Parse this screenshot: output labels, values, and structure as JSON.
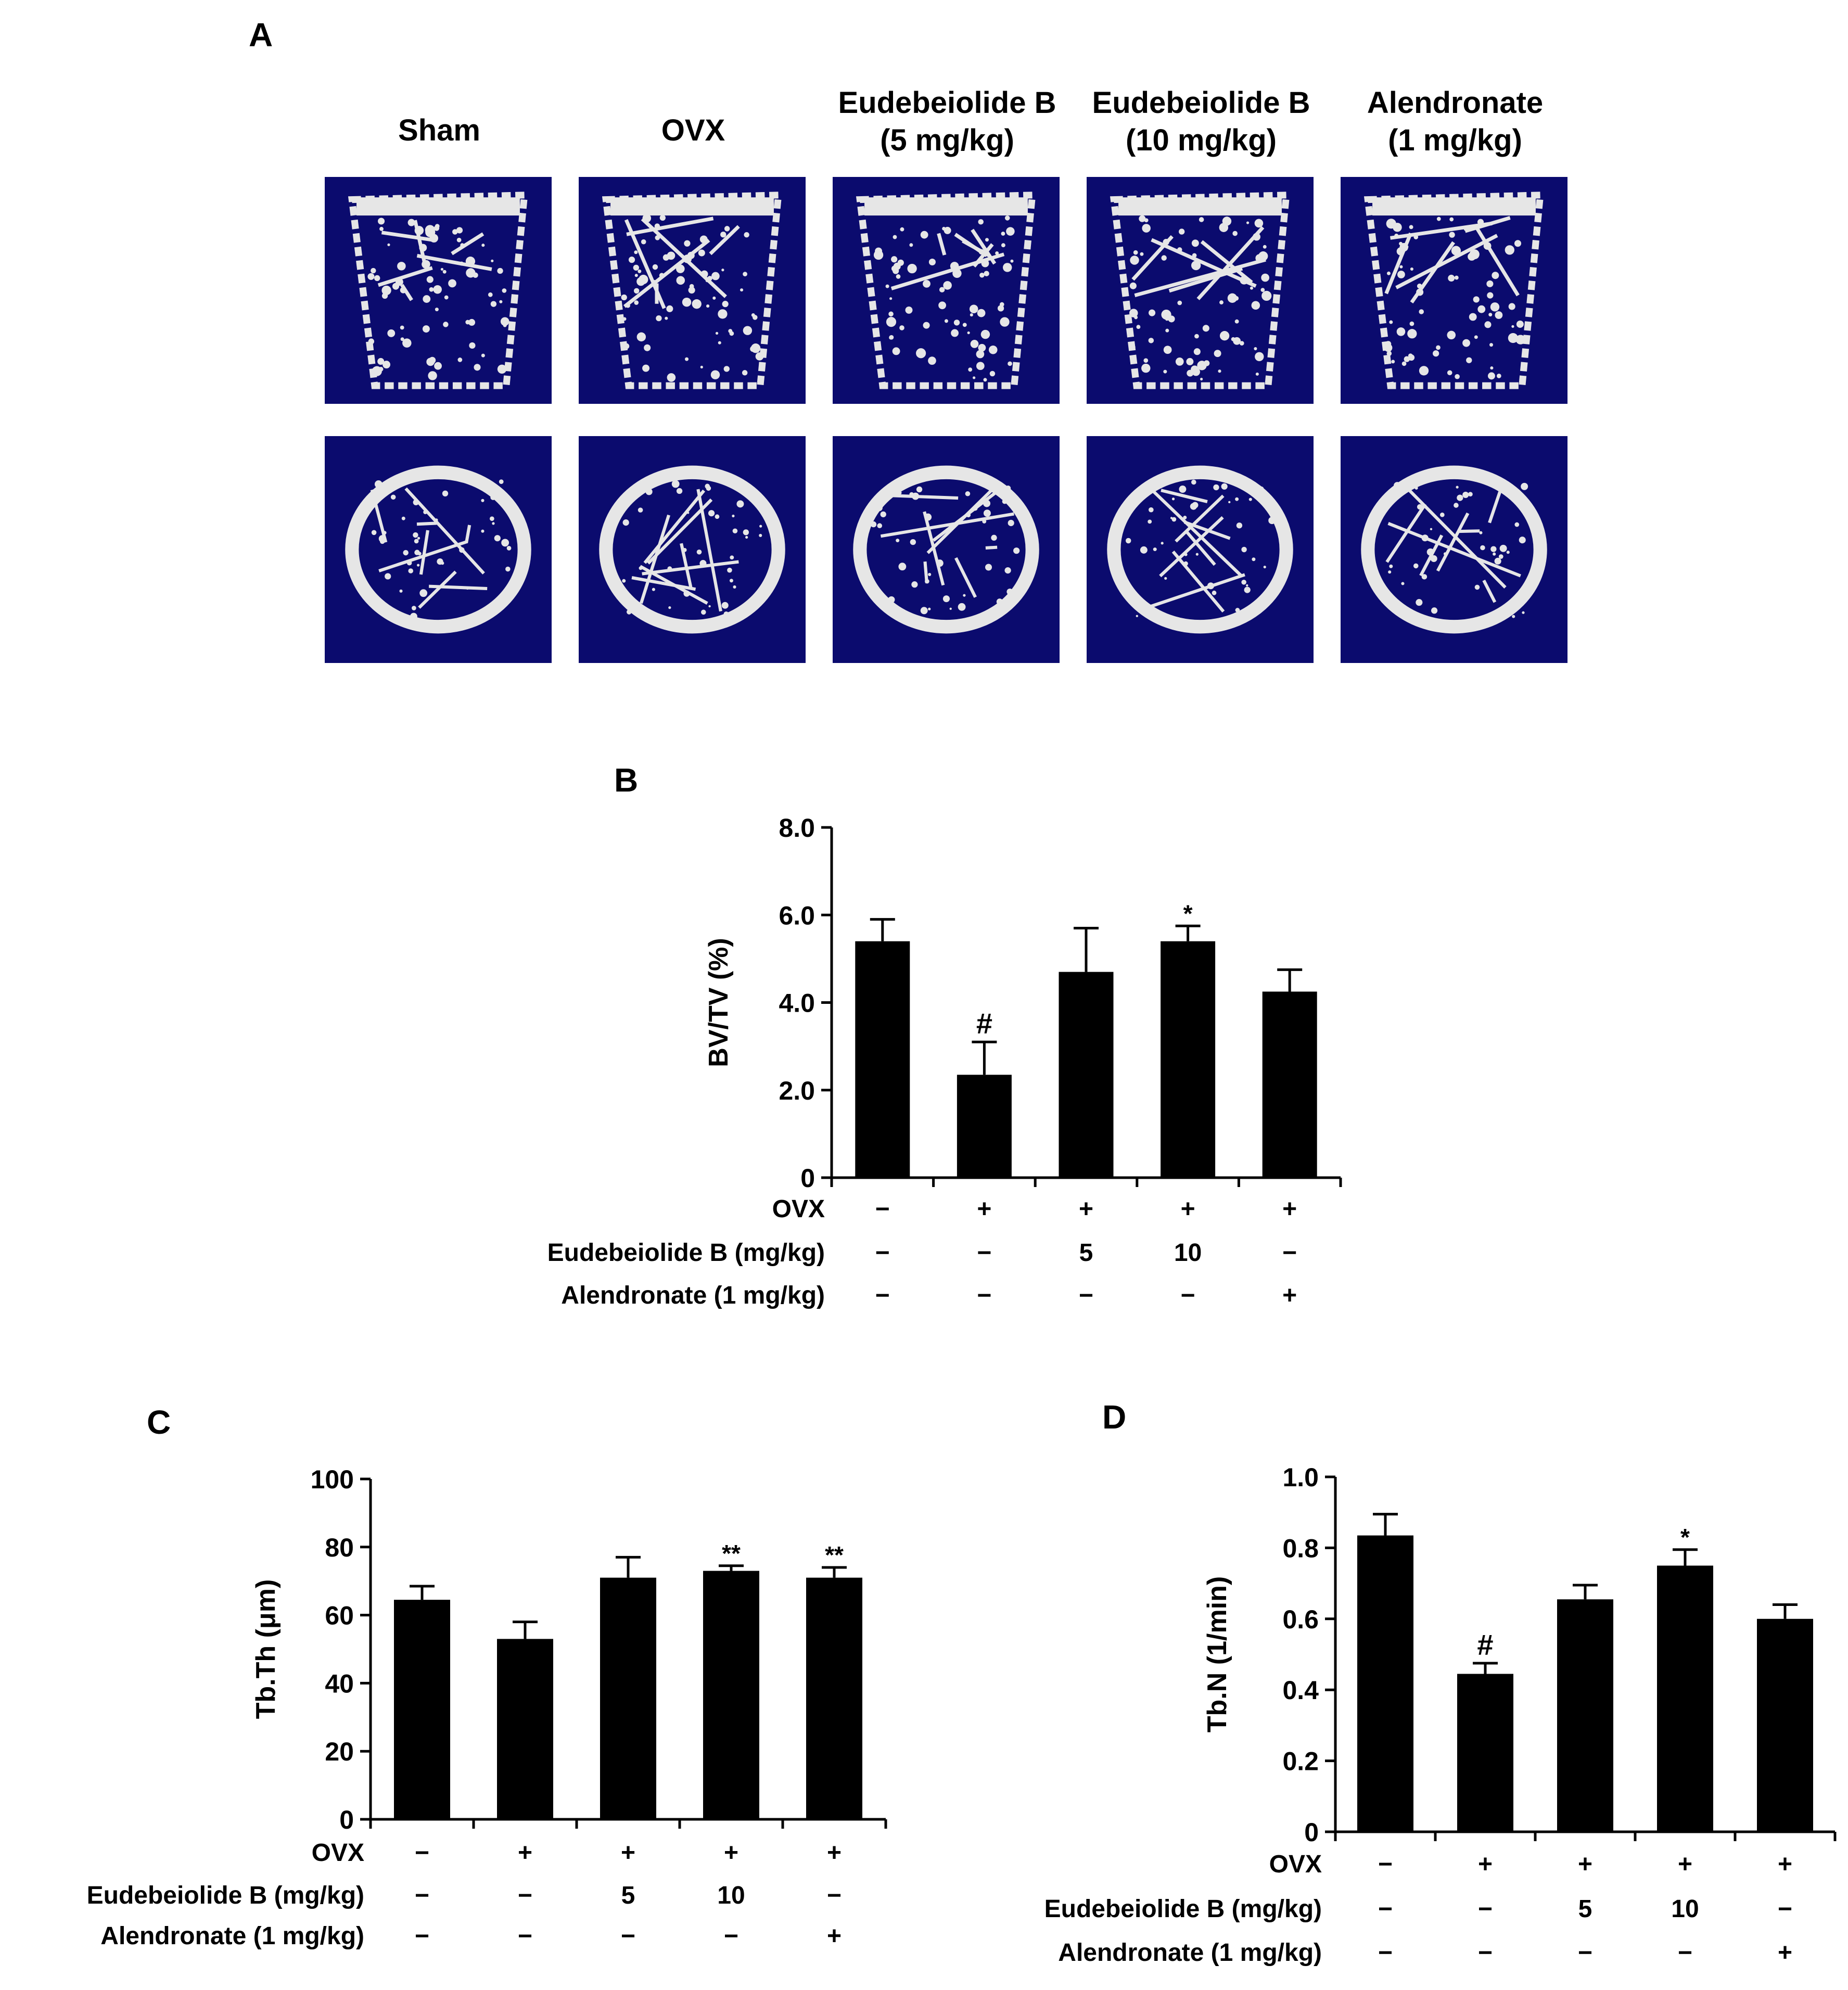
{
  "panel_a": {
    "letter": "A",
    "columns": [
      {
        "line1": "Sham",
        "line2": ""
      },
      {
        "line1": "OVX",
        "line2": ""
      },
      {
        "line1": "Eudebeiolide B",
        "line2": "(5 mg/kg)"
      },
      {
        "line1": "Eudebeiolide B",
        "line2": "(10 mg/kg)"
      },
      {
        "line1": "Alendronate",
        "line2": "(1 mg/kg)"
      }
    ],
    "image_background": "#0b0b6e",
    "bone_color": "#e6e6e6"
  },
  "row_labels": {
    "ovx": "OVX",
    "eudebeiolide": "Eudebeiolide B (mg/kg)",
    "alendronate": "Alendronate (1 mg/kg)"
  },
  "conditions": {
    "ovx": [
      "−",
      "+",
      "+",
      "+",
      "+"
    ],
    "eudebeiolide": [
      "−",
      "−",
      "5",
      "10",
      "−"
    ],
    "alendronate": [
      "−",
      "−",
      "−",
      "−",
      "+"
    ]
  },
  "chart_data": [
    {
      "panel": "B",
      "type": "bar",
      "ylabel": "BV/TV (%)",
      "ylim": [
        0,
        8
      ],
      "yticks": [
        "0",
        "2.0",
        "4.0",
        "6.0",
        "8.0"
      ],
      "ytick_values": [
        0,
        2,
        4,
        6,
        8
      ],
      "values": [
        5.4,
        2.35,
        4.7,
        5.4,
        4.25
      ],
      "errors": [
        0.5,
        0.75,
        1.0,
        0.35,
        0.5
      ],
      "annotations": [
        "",
        "#",
        "",
        "*",
        ""
      ],
      "bar_color": "#000000"
    },
    {
      "panel": "C",
      "type": "bar",
      "ylabel": "Tb.Th (μm)",
      "ylim": [
        0,
        100
      ],
      "yticks": [
        "0",
        "20",
        "40",
        "60",
        "80",
        "100"
      ],
      "ytick_values": [
        0,
        20,
        40,
        60,
        80,
        100
      ],
      "values": [
        64.5,
        53,
        71,
        73,
        71
      ],
      "errors": [
        4,
        5,
        6,
        1.5,
        3
      ],
      "annotations": [
        "",
        "",
        "",
        "**",
        "**"
      ],
      "bar_color": "#000000"
    },
    {
      "panel": "D",
      "type": "bar",
      "ylabel": "Tb.N (1/min)",
      "ylim": [
        0,
        1.0
      ],
      "yticks": [
        "0",
        "0.2",
        "0.4",
        "0.6",
        "0.8",
        "1.0"
      ],
      "ytick_values": [
        0,
        0.2,
        0.4,
        0.6,
        0.8,
        1.0
      ],
      "values": [
        0.835,
        0.445,
        0.655,
        0.75,
        0.6
      ],
      "errors": [
        0.06,
        0.03,
        0.04,
        0.045,
        0.04
      ],
      "annotations": [
        "",
        "#",
        "",
        "*",
        ""
      ],
      "bar_color": "#000000"
    }
  ]
}
